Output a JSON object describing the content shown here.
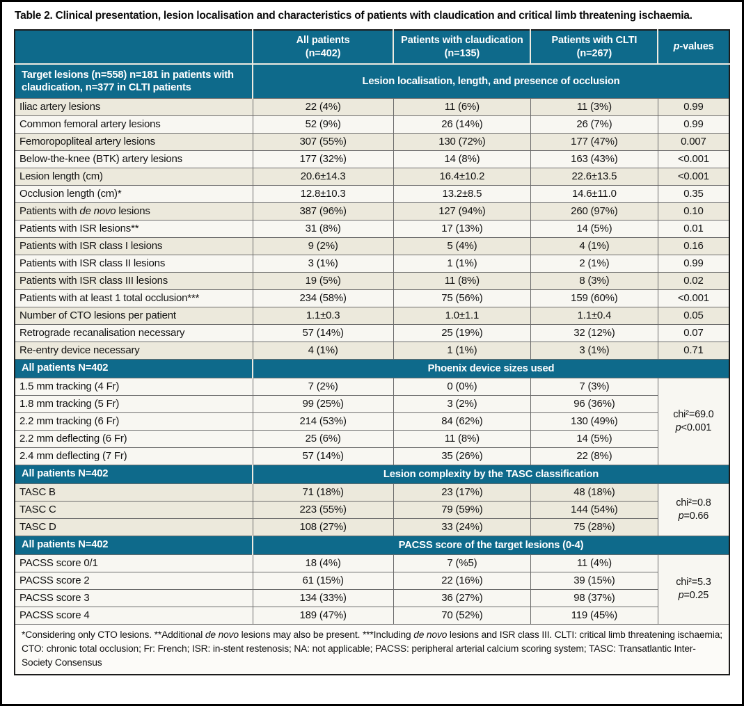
{
  "title": "Table 2. Clinical presentation, lesion localisation and characteristics of patients with claudication and critical limb threatening ischaemia.",
  "colors": {
    "header_teal": "#0e6a8b",
    "row_shaded": "#ece9dc",
    "row_plain": "#f8f7f2",
    "header_text": "#ffffff",
    "body_text": "#111111"
  },
  "header": {
    "label_column": "",
    "columns": [
      "All patients\n(n=402)",
      "Patients with claudication\n(n=135)",
      "Patients with CLTI\n(n=267)",
      "|p|-values"
    ]
  },
  "sections": [
    {
      "label": "Target lesions (n=558) n=181 in patients with claudication, n=377 in CLTI patients",
      "banner": "Lesion localisation, length, and presence of occlusion",
      "shading": "alternate",
      "p_mode": "per_row",
      "rows": [
        {
          "label": "Iliac artery lesions",
          "all": "22 (4%)",
          "claudication": "11 (6%)",
          "clti": "11 (3%)",
          "p": "0.99"
        },
        {
          "label": "Common femoral artery lesions",
          "all": "52 (9%)",
          "claudication": "26 (14%)",
          "clti": "26 (7%)",
          "p": "0.99"
        },
        {
          "label": "Femoropopliteal artery lesions",
          "all": "307 (55%)",
          "claudication": "130 (72%)",
          "clti": "177 (47%)",
          "p": "0.007"
        },
        {
          "label": "Below-the-knee (BTK) artery lesions",
          "all": "177 (32%)",
          "claudication": "14 (8%)",
          "clti": "163 (43%)",
          "p": "<0.001"
        },
        {
          "label": "Lesion length (cm)",
          "all": "20.6±14.3",
          "claudication": "16.4±10.2",
          "clti": "22.6±13.5",
          "p": "<0.001"
        },
        {
          "label": "Occlusion length (cm)*",
          "all": "12.8±10.3",
          "claudication": "13.2±8.5",
          "clti": "14.6±11.0",
          "p": "0.35"
        },
        {
          "label": "Patients with |de novo| lesions",
          "all": "387 (96%)",
          "claudication": "127 (94%)",
          "clti": "260 (97%)",
          "p": "0.10"
        },
        {
          "label": "Patients with ISR lesions**",
          "all": "31 (8%)",
          "claudication": "17 (13%)",
          "clti": "14 (5%)",
          "p": "0.01"
        },
        {
          "label": "Patients with ISR class I lesions",
          "all": "9 (2%)",
          "claudication": "5 (4%)",
          "clti": "4 (1%)",
          "p": "0.16"
        },
        {
          "label": "Patients with ISR class II lesions",
          "all": "3 (1%)",
          "claudication": "1 (1%)",
          "clti": "2 (1%)",
          "p": "0.99"
        },
        {
          "label": "Patients with ISR class III lesions",
          "all": "19 (5%)",
          "claudication": "11 (8%)",
          "clti": "8 (3%)",
          "p": "0.02"
        },
        {
          "label": "Patients with at least 1 total occlusion***",
          "all": "234 (58%)",
          "claudication": "75 (56%)",
          "clti": "159 (60%)",
          "p": "<0.001"
        },
        {
          "label": "Number of CTO lesions per patient",
          "all": "1.1±0.3",
          "claudication": "1.0±1.1",
          "clti": "1.1±0.4",
          "p": "0.05"
        },
        {
          "label": "Retrograde recanalisation necessary",
          "all": "57 (14%)",
          "claudication": "25 (19%)",
          "clti": "32 (12%)",
          "p": "0.07"
        },
        {
          "label": "Re-entry device necessary",
          "all": "4 (1%)",
          "claudication": "1 (1%)",
          "clti": "3 (1%)",
          "p": "0.71"
        }
      ]
    },
    {
      "label": "All patients N=402",
      "banner": "Phoenix device sizes used",
      "shading": "none",
      "p_mode": "span",
      "p_span": "chi²=69.0\n|p|<0.001",
      "rows": [
        {
          "label": "1.5 mm tracking (4 Fr)",
          "all": "7 (2%)",
          "claudication": "0 (0%)",
          "clti": "7 (3%)"
        },
        {
          "label": "1.8 mm tracking (5 Fr)",
          "all": "99 (25%)",
          "claudication": "3 (2%)",
          "clti": "96 (36%)"
        },
        {
          "label": "2.2 mm tracking (6 Fr)",
          "all": "214 (53%)",
          "claudication": "84 (62%)",
          "clti": "130 (49%)"
        },
        {
          "label": "2.2 mm deflecting (6 Fr)",
          "all": "25 (6%)",
          "claudication": "11 (8%)",
          "clti": "14 (5%)"
        },
        {
          "label": "2.4 mm deflecting (7 Fr)",
          "all": "57 (14%)",
          "claudication": "35 (26%)",
          "clti": "22 (8%)"
        }
      ]
    },
    {
      "label": "All patients N=402",
      "banner": "Lesion complexity by the TASC classification",
      "shading": "all",
      "p_mode": "span",
      "p_span": "chi²=0.8\n|p|=0.66",
      "rows": [
        {
          "label": "TASC B",
          "all": "71 (18%)",
          "claudication": "23 (17%)",
          "clti": "48 (18%)"
        },
        {
          "label": "TASC C",
          "all": "223 (55%)",
          "claudication": "79 (59%)",
          "clti": "144 (54%)"
        },
        {
          "label": "TASC D",
          "all": "108 (27%)",
          "claudication": "33 (24%)",
          "clti": "75 (28%)"
        }
      ]
    },
    {
      "label": "All patients N=402",
      "banner": "PACSS score of the target lesions (0-4)",
      "shading": "none",
      "p_mode": "span",
      "p_span": "chi²=5.3\n|p|=0.25",
      "rows": [
        {
          "label": "PACSS score 0/1",
          "all": "18 (4%)",
          "claudication": "7 (%5)",
          "clti": "11 (4%)"
        },
        {
          "label": "PACSS score 2",
          "all": "61 (15%)",
          "claudication": "22 (16%)",
          "clti": "39 (15%)"
        },
        {
          "label": "PACSS score 3",
          "all": "134 (33%)",
          "claudication": "36 (27%)",
          "clti": "98 (37%)"
        },
        {
          "label": "PACSS score 4",
          "all": "189 (47%)",
          "claudication": "70 (52%)",
          "clti": "119 (45%)"
        }
      ]
    }
  ],
  "footnote": "*Considering only CTO lesions. **Additional |de novo| lesions may also be present. ***Including |de novo| lesions and ISR class III. CLTI: critical limb threatening ischaemia; CTO: chronic total occlusion; Fr: French; ISR: in-stent restenosis; NA: not applicable; PACSS: peripheral arterial calcium scoring system; TASC: Transatlantic Inter-Society Consensus"
}
